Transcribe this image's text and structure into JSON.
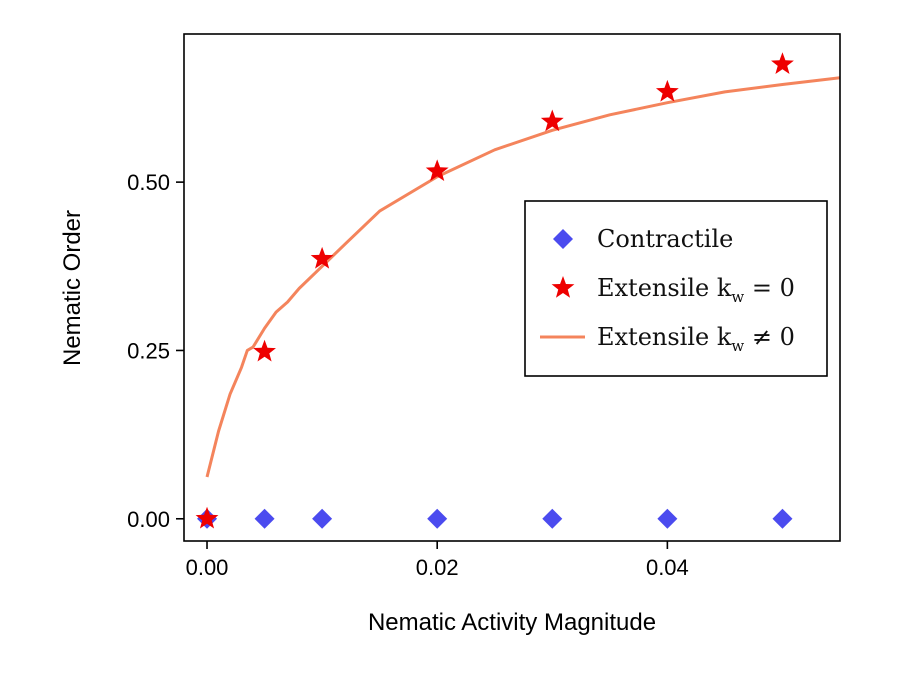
{
  "chart_data": {
    "type": "scatter",
    "xlabel": "Nematic Activity Magnitude",
    "ylabel": "Nematic Order",
    "xlim": [
      -0.002,
      0.055
    ],
    "ylim": [
      -0.033,
      0.72
    ],
    "xticks": [
      0.0,
      0.02,
      0.04
    ],
    "xtick_labels": [
      "0.00",
      "0.02",
      "0.04"
    ],
    "yticks": [
      0.0,
      0.25,
      0.5
    ],
    "ytick_labels": [
      "0.00",
      "0.25",
      "0.50"
    ],
    "legend_position": "center-right",
    "series": [
      {
        "name": "Contractile",
        "legend_label": "Contractile",
        "marker": "diamond",
        "color": "#4b4bef",
        "x": [
          0.0,
          0.005,
          0.01,
          0.02,
          0.03,
          0.04,
          0.05
        ],
        "y": [
          0.0,
          0.0,
          0.0,
          0.0,
          0.0,
          0.0,
          0.0
        ]
      },
      {
        "name": "Extensile k_w = 0",
        "legend_label": "Extensile k",
        "legend_sub": "w",
        "legend_suffix": " = 0",
        "marker": "star",
        "color": "#ee0000",
        "x": [
          0.0,
          0.005,
          0.01,
          0.02,
          0.03,
          0.04,
          0.05
        ],
        "y": [
          0.0,
          0.248,
          0.386,
          0.516,
          0.59,
          0.634,
          0.675
        ]
      },
      {
        "name": "Extensile k_w ≠ 0",
        "legend_label": "Extensile k",
        "legend_sub": "w",
        "legend_suffix": " ≠ 0",
        "marker": "line",
        "color": "#f4845c",
        "x": [
          0.0,
          0.001,
          0.002,
          0.003,
          0.0035,
          0.004,
          0.005,
          0.006,
          0.007,
          0.008,
          0.01,
          0.012,
          0.015,
          0.02,
          0.025,
          0.03,
          0.035,
          0.04,
          0.045,
          0.05,
          0.055
        ],
        "y": [
          0.062,
          0.13,
          0.185,
          0.225,
          0.25,
          0.255,
          0.283,
          0.307,
          0.322,
          0.342,
          0.375,
          0.408,
          0.457,
          0.508,
          0.548,
          0.577,
          0.6,
          0.618,
          0.634,
          0.645,
          0.655
        ]
      }
    ]
  }
}
